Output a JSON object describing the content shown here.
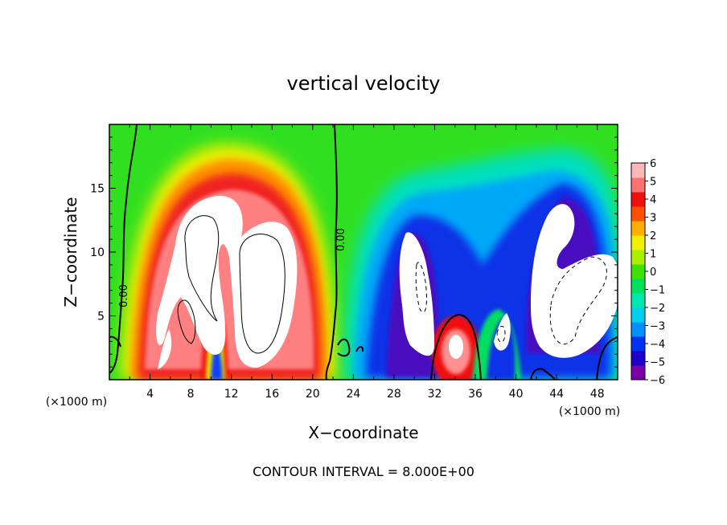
{
  "chart_data": {
    "type": "heatmap",
    "title": "vertical velocity",
    "xlabel": "X−coordinate",
    "ylabel": "Z−coordinate",
    "x_unit_label": "(×1000 m)",
    "footer": "CONTOUR INTERVAL = 8.000E+00",
    "xlim": [
      0,
      50
    ],
    "ylim": [
      0,
      20
    ],
    "x_ticks": [
      4,
      8,
      12,
      16,
      20,
      24,
      28,
      32,
      36,
      40,
      44,
      48
    ],
    "x_tick_labels": [
      "4",
      "8",
      "12",
      "16",
      "20",
      "24",
      "28",
      "32",
      "36",
      "40",
      "44",
      "48"
    ],
    "y_ticks": [
      5,
      10,
      15
    ],
    "y_tick_labels": [
      "5",
      "10",
      "15"
    ],
    "colorbar": {
      "range": [
        -6,
        6
      ],
      "tick_values": [
        6,
        5,
        4,
        3,
        2,
        1,
        0,
        -1,
        -2,
        -3,
        -4,
        -5,
        -6
      ],
      "tick_labels": [
        "6",
        "5",
        "4",
        "3",
        "2",
        "1",
        "0",
        "−1",
        "−2",
        "−3",
        "−4",
        "−5",
        "−6"
      ],
      "colors": [
        "#7a00a8",
        "#2000c8",
        "#0030f0",
        "#0090ff",
        "#00d0f0",
        "#00e8b0",
        "#00e060",
        "#40e000",
        "#a8f000",
        "#f0f000",
        "#ffb000",
        "#ff5000",
        "#f01010",
        "#ff7070",
        "#ffb8b8"
      ]
    },
    "contour_labels": [
      "0.00",
      "0.00"
    ],
    "features": [
      {
        "label": "updraft core",
        "x": 9,
        "z": 9,
        "w": 14
      },
      {
        "label": "updraft core",
        "x": 15,
        "z": 9,
        "w": 14
      },
      {
        "label": "updraft",
        "x": 6.5,
        "z": 4,
        "w": 8
      },
      {
        "label": "downdraft",
        "x": 11.5,
        "z": 1.5,
        "w": -4
      },
      {
        "label": "downdraft",
        "x": 30,
        "z": 6,
        "w": -14
      },
      {
        "label": "updraft",
        "x": 34,
        "z": 2.5,
        "w": 10
      },
      {
        "label": "downdraft",
        "x": 39,
        "z": 3.5,
        "w": -10
      },
      {
        "label": "downdraft",
        "x": 44.5,
        "z": 6.5,
        "w": -16
      }
    ]
  }
}
